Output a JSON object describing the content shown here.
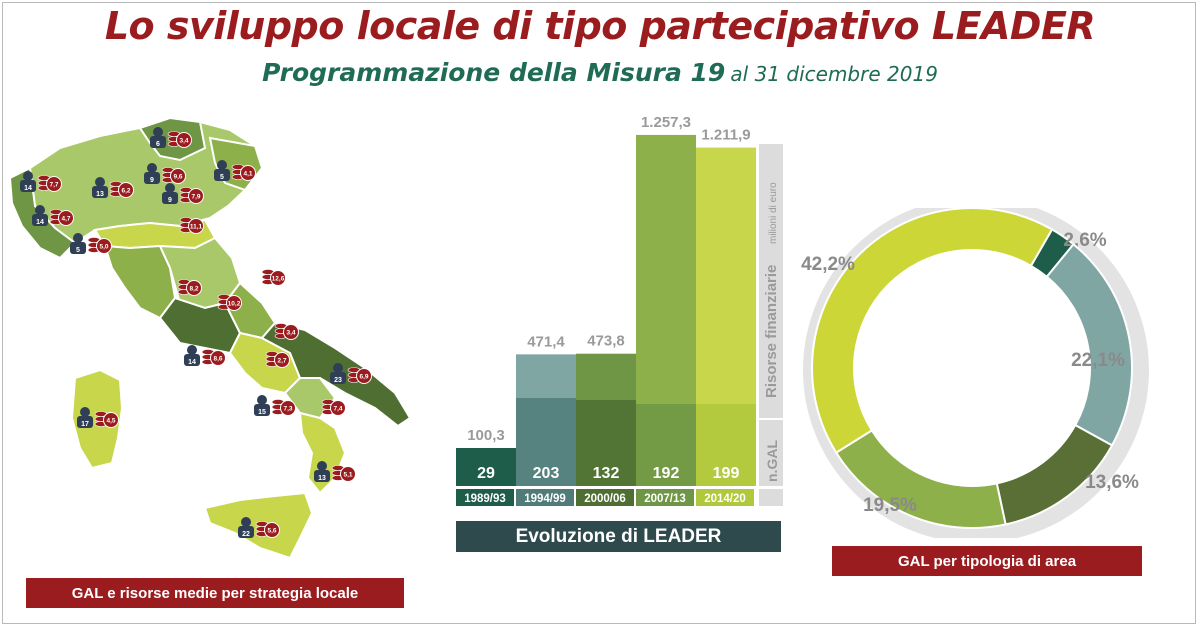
{
  "title": "Lo sviluppo locale di tipo partecipativo LEADER",
  "subtitle": {
    "main": "Programmazione della Misura 19",
    "date": "al 31 dicembre 2019"
  },
  "map": {
    "caption": "GAL e risorse medie per strategia locale",
    "regions": [
      {
        "gal": "6",
        "avg": "3,4"
      },
      {
        "gal": "9",
        "avg": "9,6"
      },
      {
        "gal": "5",
        "avg": "4,1"
      },
      {
        "gal": "14",
        "avg": "7,7"
      },
      {
        "gal": "13",
        "avg": "6,2"
      },
      {
        "gal": "9",
        "avg": "7,9"
      },
      {
        "gal": "14",
        "avg": "4,7"
      },
      {
        "gal": "5",
        "avg": "5,0"
      },
      {
        "gal": "",
        "avg": "11,1"
      },
      {
        "gal": "",
        "avg": "12,6"
      },
      {
        "gal": "",
        "avg": "8,2"
      },
      {
        "gal": "",
        "avg": "10,2"
      },
      {
        "gal": "",
        "avg": "3,4"
      },
      {
        "gal": "14",
        "avg": "8,6"
      },
      {
        "gal": "",
        "avg": "2,7"
      },
      {
        "gal": "23",
        "avg": "6,9"
      },
      {
        "gal": "17",
        "avg": "4,5"
      },
      {
        "gal": "15",
        "avg": "7,3"
      },
      {
        "gal": "",
        "avg": "7,4"
      },
      {
        "gal": "13",
        "avg": "5,1"
      },
      {
        "gal": "22",
        "avg": "5,6"
      }
    ]
  },
  "evolution": {
    "caption": "Evoluzione di LEADER",
    "side_label_resources": "Risorse finanziarie",
    "side_label_resources_unit": "milioni di euro",
    "side_label_gal": "n.GAL"
  },
  "donut": {
    "caption": "GAL per tipologia di area"
  },
  "chart_data": [
    {
      "type": "bar",
      "categories": [
        "1989/93",
        "1994/99",
        "2000/06",
        "2007/13",
        "2014/20"
      ],
      "series": [
        {
          "name": "Risorse finanziarie",
          "values": [
            100.3,
            471.4,
            473.8,
            1257.3,
            1211.9
          ],
          "labels": [
            "100,3",
            "471,4",
            "473,8",
            "1.257,3",
            "1.211,9"
          ]
        },
        {
          "name": "n.GAL",
          "values": [
            29,
            203,
            132,
            192,
            199
          ],
          "labels": [
            "29",
            "203",
            "132",
            "192",
            "199"
          ]
        }
      ],
      "colors": [
        "#1f5d4b",
        "#7fa6a3",
        "#6e9644",
        "#8db04a",
        "#c7d64a"
      ],
      "colors_dark": [
        "#1f5d4b",
        "#4f7b79",
        "#4e6e32",
        "#6e9644",
        "#b0c83c"
      ],
      "ylim": [
        0,
        1300
      ]
    },
    {
      "type": "pie",
      "labels": [
        "2,6%",
        "22,1%",
        "13,6%",
        "19,5%",
        "42,2%"
      ],
      "values": [
        2.6,
        22.1,
        13.6,
        19.5,
        42.2
      ],
      "colors": [
        "#1f5d4b",
        "#7fa6a3",
        "#5a6f35",
        "#8db04a",
        "#cdd637"
      ]
    }
  ]
}
